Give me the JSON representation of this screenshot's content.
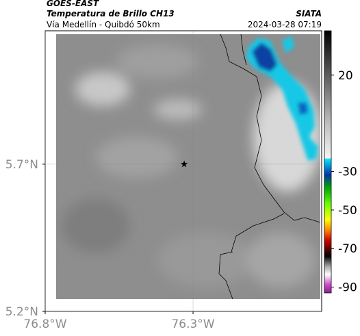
{
  "header": {
    "satellite": "GOES-EAST",
    "product": "Temperatura de Brillo CH13",
    "region": "Vía Medellín - Quibdó 50km",
    "source": "SIATA",
    "timestamp": "2024-03-28 07:19"
  },
  "map": {
    "xlim": [
      -76.8,
      -75.865
    ],
    "ylim": [
      5.2,
      6.153
    ],
    "xticks": [
      {
        "value": -76.8,
        "label": "76.8°W"
      },
      {
        "value": -76.3,
        "label": "76.3°W"
      }
    ],
    "yticks": [
      {
        "value": 5.2,
        "label": "5.2°N"
      },
      {
        "value": 5.7,
        "label": "5.7°N"
      }
    ],
    "grid": true,
    "marker": {
      "lon": -76.33,
      "lat": 5.7
    }
  },
  "colorbar": {
    "clim": [
      43,
      -93
    ],
    "ticks": [
      20,
      -30,
      -50,
      -70,
      -90
    ]
  }
}
